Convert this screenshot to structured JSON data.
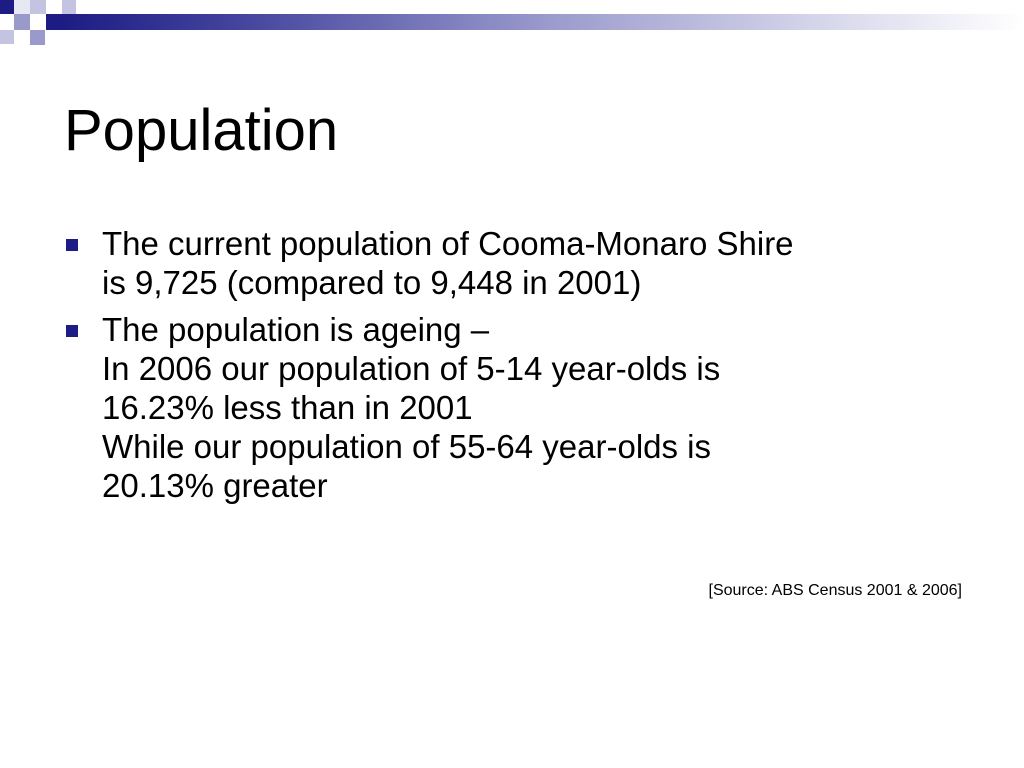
{
  "slide": {
    "title": "Population",
    "accent_color": "#1c1c84",
    "bullets": [
      {
        "lines": [
          "The current population of Cooma-Monaro Shire",
          "is 9,725 (compared to 9,448 in 2001)"
        ]
      },
      {
        "lines": [
          "The population is ageing –",
          "In 2006 our population of 5-14 year-olds is",
          "16.23% less than in 2001",
          "While our population of 55-64 year-olds is",
          "20.13% greater"
        ]
      }
    ],
    "source": "[Source: ABS Census 2001 & 2006]"
  }
}
